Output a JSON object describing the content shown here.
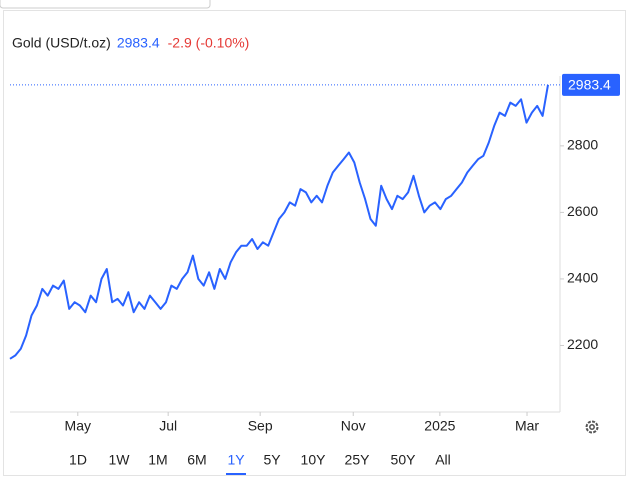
{
  "header": {
    "name": "Gold (USD/t.oz)",
    "price": 2983.4,
    "change": "-2.9 (-0.10%)"
  },
  "chart_data": {
    "type": "line",
    "xlim": [
      0,
      100
    ],
    "xticks": [
      {
        "value": 12.6,
        "label": "May"
      },
      {
        "value": 29.4,
        "label": "Jul"
      },
      {
        "value": 46.5,
        "label": "Sep"
      },
      {
        "value": 63.8,
        "label": "Nov"
      },
      {
        "value": 79.9,
        "label": "2025"
      },
      {
        "value": 96.1,
        "label": "Mar"
      }
    ],
    "ylim": [
      2000,
      3010
    ],
    "yticks": [
      2200,
      2400,
      2600,
      2800
    ],
    "series": [
      {
        "name": "Gold",
        "color": "#2962ff",
        "values": [
          2160,
          2170,
          2190,
          2230,
          2290,
          2320,
          2370,
          2350,
          2380,
          2370,
          2395,
          2310,
          2330,
          2320,
          2300,
          2350,
          2330,
          2400,
          2430,
          2330,
          2340,
          2320,
          2360,
          2300,
          2330,
          2310,
          2350,
          2330,
          2310,
          2330,
          2380,
          2370,
          2400,
          2420,
          2470,
          2400,
          2380,
          2420,
          2370,
          2430,
          2400,
          2450,
          2480,
          2500,
          2500,
          2520,
          2490,
          2510,
          2500,
          2540,
          2580,
          2600,
          2630,
          2620,
          2670,
          2660,
          2630,
          2650,
          2630,
          2680,
          2720,
          2740,
          2760,
          2780,
          2750,
          2690,
          2640,
          2580,
          2560,
          2680,
          2640,
          2610,
          2650,
          2640,
          2660,
          2710,
          2650,
          2600,
          2620,
          2630,
          2610,
          2640,
          2650,
          2670,
          2690,
          2720,
          2740,
          2760,
          2770,
          2810,
          2860,
          2900,
          2890,
          2930,
          2920,
          2940,
          2870,
          2900,
          2920,
          2890,
          2983.4
        ]
      }
    ]
  },
  "ranges": [
    "1D",
    "1W",
    "1M",
    "6M",
    "1Y",
    "5Y",
    "10Y",
    "25Y",
    "50Y",
    "All"
  ],
  "selected_range": "1Y"
}
